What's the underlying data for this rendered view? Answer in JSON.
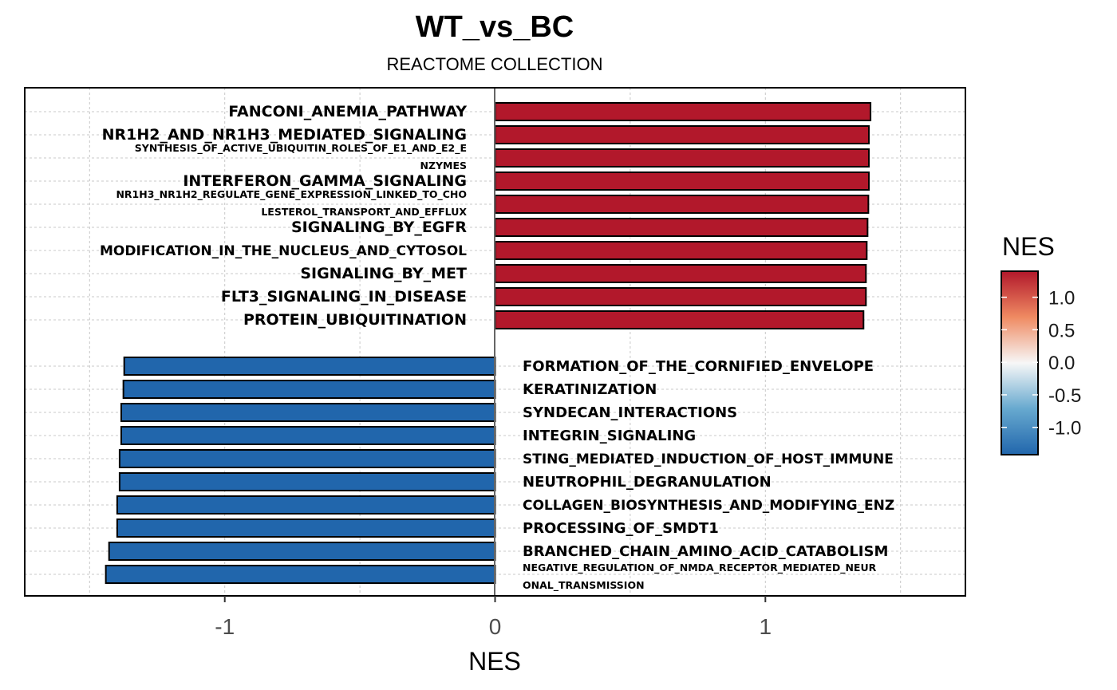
{
  "chart_data": {
    "type": "bar",
    "orientation": "horizontal",
    "title": "WT_vs_BC",
    "subtitle": "REACTOME COLLECTION",
    "xlabel": "NES",
    "ylabel": "",
    "xlim": [
      -1.74,
      1.74
    ],
    "xticks": [
      -1,
      0,
      1
    ],
    "xtick_labels": [
      "-1",
      "0",
      "1"
    ],
    "grid": true,
    "colors": {
      "positive": "#B2182B",
      "negative": "#2166AC",
      "mid": "#F7F7F7"
    },
    "legend": {
      "title": "NES",
      "position": "right",
      "range": [
        -1.42,
        1.4
      ],
      "ticks": [
        1.0,
        0.5,
        0.0,
        -0.5,
        -1.0
      ],
      "tick_labels": [
        "1.0",
        "0.5",
        "0.0",
        "-0.5",
        "-1.0"
      ]
    },
    "bars": [
      {
        "lines": [
          "FANCONI_ANEMIA_PATHWAY"
        ],
        "value": 1.389
      },
      {
        "lines": [
          "NR1H2_AND_NR1H3_MEDIATED_SIGNALING"
        ],
        "value": 1.383
      },
      {
        "lines": [
          "SYNTHESIS_OF_ACTIVE_UBIQUITIN_ROLES_OF_E1_AND_E2_E",
          "NZYMES"
        ],
        "value": 1.383
      },
      {
        "lines": [
          "INTERFERON_GAMMA_SIGNALING"
        ],
        "value": 1.383
      },
      {
        "lines": [
          "NR1H3_NR1H2_REGULATE_GENE_EXPRESSION_LINKED_TO_CHO",
          "LESTEROL_TRANSPORT_AND_EFFLUX"
        ],
        "value": 1.381
      },
      {
        "lines": [
          "SIGNALING_BY_EGFR"
        ],
        "value": 1.378
      },
      {
        "lines": [
          "MODIFICATION_IN_THE_NUCLEUS_AND_CYTOSOL"
        ],
        "value": 1.375
      },
      {
        "lines": [
          "SIGNALING_BY_MET"
        ],
        "value": 1.372
      },
      {
        "lines": [
          "FLT3_SIGNALING_IN_DISEASE"
        ],
        "value": 1.372
      },
      {
        "lines": [
          "PROTEIN_UBIQUITINATION"
        ],
        "value": 1.363
      },
      {
        "lines": [
          "FORMATION_OF_THE_CORNIFIED_ENVELOPE"
        ],
        "value": -1.372
      },
      {
        "lines": [
          "KERATINIZATION"
        ],
        "value": -1.375
      },
      {
        "lines": [
          "SYNDECAN_INTERACTIONS"
        ],
        "value": -1.383
      },
      {
        "lines": [
          "INTEGRIN_SIGNALING"
        ],
        "value": -1.383
      },
      {
        "lines": [
          "STING_MEDIATED_INDUCTION_OF_HOST_IMMUNE"
        ],
        "value": -1.389
      },
      {
        "lines": [
          "NEUTROPHIL_DEGRANULATION"
        ],
        "value": -1.389
      },
      {
        "lines": [
          "COLLAGEN_BIOSYNTHESIS_AND_MODIFYING_ENZ"
        ],
        "value": -1.398
      },
      {
        "lines": [
          "PROCESSING_OF_SMDT1"
        ],
        "value": -1.398
      },
      {
        "lines": [
          "BRANCHED_CHAIN_AMINO_ACID_CATABOLISM"
        ],
        "value": -1.428
      },
      {
        "lines": [
          "NEGATIVE_REGULATION_OF_NMDA_RECEPTOR_MEDIATED_NEUR",
          "ONAL_TRANSMISSION"
        ],
        "value": -1.44
      }
    ]
  }
}
